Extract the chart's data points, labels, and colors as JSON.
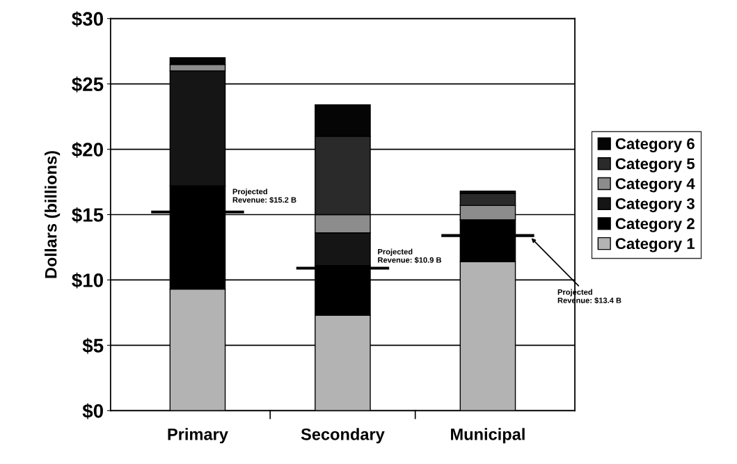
{
  "chart_data": {
    "type": "bar",
    "stacked": true,
    "ylabel": "Dollars (billions)",
    "categories": [
      "Primary",
      "Secondary",
      "Municipal"
    ],
    "series": [
      {
        "name": "Category 1",
        "color": "#b3b3b3",
        "values": [
          9.3,
          7.3,
          11.4
        ]
      },
      {
        "name": "Category 2",
        "color": "#000000",
        "values": [
          7.9,
          3.8,
          3.2
        ]
      },
      {
        "name": "Category 3",
        "color": "#151515",
        "values": [
          8.8,
          2.5,
          0
        ]
      },
      {
        "name": "Category 4",
        "color": "#8c8c8c",
        "values": [
          0.5,
          1.4,
          1.1
        ]
      },
      {
        "name": "Category 5",
        "color": "#2a2a2a",
        "values": [
          0,
          6.0,
          0.9
        ]
      },
      {
        "name": "Category 6",
        "color": "#050505",
        "values": [
          0.5,
          2.4,
          0.2
        ]
      }
    ],
    "ylim": [
      0,
      30
    ],
    "yticks": [
      {
        "value": 0,
        "label": "$0"
      },
      {
        "value": 5,
        "label": "$5"
      },
      {
        "value": 10,
        "label": "$10"
      },
      {
        "value": 15,
        "label": "$15"
      },
      {
        "value": 20,
        "label": "$20"
      },
      {
        "value": 25,
        "label": "$25"
      },
      {
        "value": 30,
        "label": "$30"
      }
    ],
    "grid": "y",
    "legend": "right",
    "ref_lines": [
      {
        "axis": "y",
        "value": 15.2,
        "label": "Projected\nRevenue: $15.2 B",
        "color": "#000000"
      },
      {
        "axis": "y",
        "value": 10.9,
        "label": "Projected\nRevenue: $10.9 B",
        "color": "#000000"
      },
      {
        "axis": "y",
        "value": 13.4,
        "label": "Projected\nRevenue: $13.4 B",
        "color": "#000000"
      }
    ]
  }
}
